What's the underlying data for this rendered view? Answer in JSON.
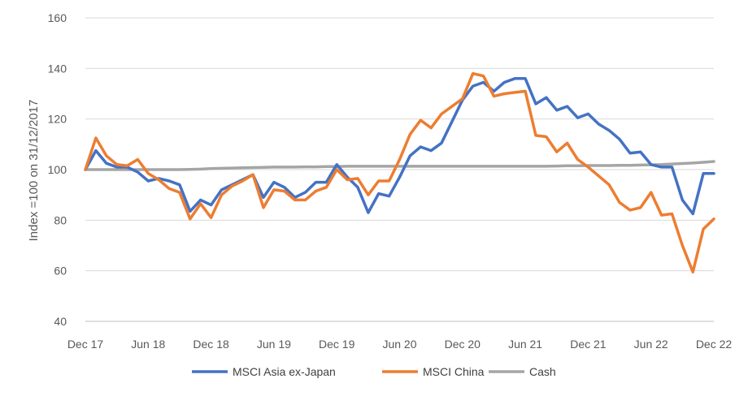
{
  "chart_data": {
    "type": "line",
    "title": "",
    "xlabel": "",
    "ylabel": "Index =100 on 31/12/2017",
    "ylim": [
      40,
      160
    ],
    "yticks": [
      "40",
      "60",
      "80",
      "100",
      "120",
      "140",
      "160"
    ],
    "xticks": [
      "Dec 17",
      "Jun 18",
      "Dec 18",
      "Jun 19",
      "Dec 19",
      "Jun 20",
      "Dec 20",
      "Jun 21",
      "Dec 21",
      "Jun 22",
      "Dec 22"
    ],
    "grid": true,
    "legend": "bottom",
    "x_months": [
      0,
      1,
      2,
      3,
      4,
      5,
      6,
      7,
      8,
      9,
      10,
      11,
      12,
      13,
      14,
      15,
      16,
      17,
      18,
      19,
      20,
      21,
      22,
      23,
      24,
      25,
      26,
      27,
      28,
      29,
      30,
      31,
      32,
      33,
      34,
      35,
      36,
      37,
      38,
      39,
      40,
      41,
      42,
      43,
      44,
      45,
      46,
      47,
      48,
      49,
      50,
      51,
      52,
      53,
      54,
      55,
      56,
      57,
      58,
      59,
      60
    ],
    "series": [
      {
        "name": "MSCI Asia ex-Japan",
        "color": "#4472C4",
        "values": [
          100,
          107.5,
          102.5,
          101,
          101,
          99,
          95.5,
          96.5,
          95.5,
          94,
          83.5,
          88,
          86,
          92,
          94,
          96,
          98,
          89,
          95,
          93,
          89,
          91,
          95,
          95,
          102,
          97,
          93,
          83,
          90.5,
          89.5,
          97,
          105.5,
          109,
          107.5,
          110.5,
          119,
          127.5,
          133,
          134.5,
          131,
          134.5,
          136,
          136,
          126,
          128.5,
          123.5,
          125,
          120.5,
          122,
          118,
          115.5,
          112,
          106.5,
          107,
          102,
          101,
          101,
          88,
          82.5,
          98.5,
          98.5
        ]
      },
      {
        "name": "MSCI China",
        "color": "#ED7D31",
        "values": [
          100,
          112.5,
          105.5,
          102,
          101.5,
          104,
          98.5,
          96,
          92.5,
          91,
          80.5,
          86.5,
          81,
          90,
          93.5,
          95.5,
          98,
          85,
          92,
          91.5,
          88,
          88,
          91.5,
          93,
          100,
          96,
          96.5,
          90,
          95.5,
          95.5,
          104,
          114,
          119.5,
          116.5,
          122,
          125,
          128,
          138,
          137,
          129,
          130,
          130.5,
          131,
          113.5,
          113,
          107,
          110.5,
          104,
          101,
          97.5,
          94,
          87,
          84,
          85,
          91,
          82,
          82.5,
          70,
          59.5,
          76.5,
          80.5
        ]
      },
      {
        "name": "Cash",
        "color": "#A5A5A5",
        "values": [
          100,
          100,
          100,
          100,
          100,
          100,
          100,
          100,
          100,
          100,
          100.1,
          100.2,
          100.4,
          100.5,
          100.6,
          100.7,
          100.8,
          100.9,
          101,
          101,
          101,
          101.1,
          101.1,
          101.2,
          101.2,
          101.3,
          101.3,
          101.3,
          101.3,
          101.3,
          101.3,
          101.3,
          101.3,
          101.3,
          101.3,
          101.3,
          101.3,
          101.3,
          101.3,
          101.3,
          101.3,
          101.3,
          101.3,
          101.3,
          101.3,
          101.4,
          101.5,
          101.5,
          101.6,
          101.6,
          101.6,
          101.7,
          101.7,
          101.8,
          101.9,
          102,
          102.2,
          102.4,
          102.6,
          102.9,
          103.2
        ]
      }
    ]
  }
}
